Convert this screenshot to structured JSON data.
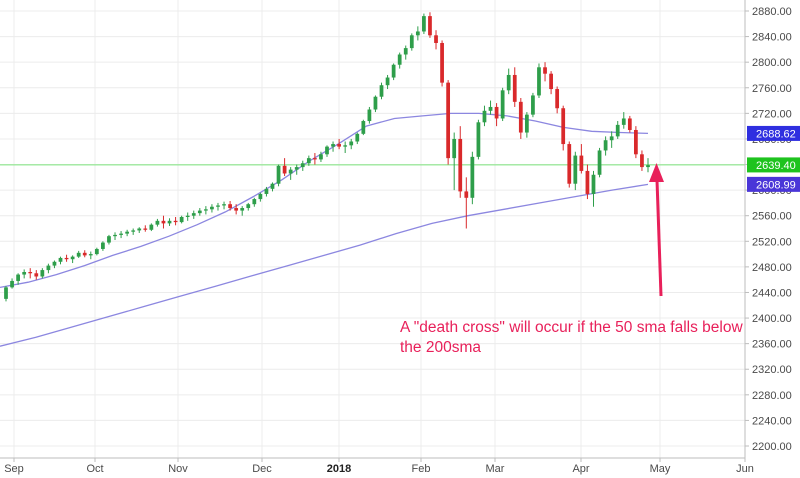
{
  "chart_data": {
    "type": "candlestick",
    "y_axis": {
      "position": "right",
      "ylim": [
        2170,
        2890
      ],
      "ticks": [
        2880,
        2840,
        2800,
        2760,
        2720,
        2680,
        2640,
        2600,
        2560,
        2520,
        2480,
        2440,
        2400,
        2360,
        2320,
        2280,
        2240,
        2200
      ],
      "tick_labels": [
        "2880.00",
        "2840.00",
        "2800.00",
        "2760.00",
        "2720.00",
        "2680.00",
        "2640.00",
        "2600.00",
        "2560.00",
        "2520.00",
        "2480.00",
        "2440.00",
        "2400.00",
        "2360.00",
        "2320.00",
        "2280.00",
        "2240.00",
        "2200.00"
      ]
    },
    "x_axis": {
      "labels": [
        {
          "text": "Sep",
          "bold": false
        },
        {
          "text": "Oct",
          "bold": false
        },
        {
          "text": "Nov",
          "bold": false
        },
        {
          "text": "Dec",
          "bold": false
        },
        {
          "text": "2018",
          "bold": true
        },
        {
          "text": "Feb",
          "bold": false
        },
        {
          "text": "Mar",
          "bold": false
        },
        {
          "text": "Apr",
          "bold": false
        },
        {
          "text": "May",
          "bold": false
        },
        {
          "text": "Jun",
          "bold": false
        }
      ]
    },
    "grid": true,
    "up_color": "#2e9e4a",
    "down_color": "#d9292b",
    "sma_color": "#8c87e0",
    "series": [
      {
        "kind": "candles",
        "values": [
          [
            2430,
            2450,
            2426,
            2448
          ],
          [
            2448,
            2462,
            2446,
            2458
          ],
          [
            2458,
            2470,
            2452,
            2468
          ],
          [
            2468,
            2476,
            2462,
            2472
          ],
          [
            2472,
            2478,
            2462,
            2470
          ],
          [
            2470,
            2475,
            2460,
            2465
          ],
          [
            2465,
            2478,
            2462,
            2475
          ],
          [
            2475,
            2485,
            2470,
            2482
          ],
          [
            2482,
            2490,
            2478,
            2488
          ],
          [
            2488,
            2496,
            2484,
            2494
          ],
          [
            2494,
            2499,
            2488,
            2492
          ],
          [
            2492,
            2498,
            2486,
            2496
          ],
          [
            2496,
            2505,
            2494,
            2502
          ],
          [
            2502,
            2506,
            2495,
            2498
          ],
          [
            2498,
            2504,
            2492,
            2500
          ],
          [
            2500,
            2510,
            2498,
            2508
          ],
          [
            2508,
            2520,
            2505,
            2518
          ],
          [
            2518,
            2530,
            2515,
            2528
          ],
          [
            2528,
            2534,
            2522,
            2530
          ],
          [
            2530,
            2536,
            2525,
            2532
          ],
          [
            2532,
            2538,
            2528,
            2535
          ],
          [
            2535,
            2540,
            2530,
            2537
          ],
          [
            2537,
            2542,
            2533,
            2540
          ],
          [
            2540,
            2545,
            2535,
            2538
          ],
          [
            2538,
            2548,
            2536,
            2546
          ],
          [
            2546,
            2555,
            2543,
            2552
          ],
          [
            2552,
            2560,
            2540,
            2548
          ],
          [
            2548,
            2556,
            2544,
            2552
          ],
          [
            2552,
            2558,
            2545,
            2550
          ],
          [
            2550,
            2560,
            2548,
            2558
          ],
          [
            2558,
            2565,
            2552,
            2560
          ],
          [
            2560,
            2568,
            2555,
            2564
          ],
          [
            2564,
            2572,
            2560,
            2568
          ],
          [
            2568,
            2575,
            2562,
            2570
          ],
          [
            2570,
            2578,
            2565,
            2574
          ],
          [
            2574,
            2580,
            2568,
            2576
          ],
          [
            2576,
            2582,
            2570,
            2578
          ],
          [
            2578,
            2583,
            2568,
            2572
          ],
          [
            2572,
            2578,
            2562,
            2568
          ],
          [
            2568,
            2575,
            2560,
            2572
          ],
          [
            2572,
            2580,
            2568,
            2578
          ],
          [
            2578,
            2588,
            2574,
            2586
          ],
          [
            2586,
            2596,
            2582,
            2594
          ],
          [
            2594,
            2605,
            2590,
            2602
          ],
          [
            2602,
            2612,
            2598,
            2610
          ],
          [
            2610,
            2640,
            2606,
            2638
          ],
          [
            2638,
            2650,
            2622,
            2626
          ],
          [
            2626,
            2636,
            2616,
            2632
          ],
          [
            2632,
            2640,
            2624,
            2636
          ],
          [
            2636,
            2646,
            2630,
            2642
          ],
          [
            2642,
            2654,
            2638,
            2650
          ],
          [
            2650,
            2658,
            2640,
            2648
          ],
          [
            2648,
            2660,
            2644,
            2656
          ],
          [
            2656,
            2670,
            2652,
            2668
          ],
          [
            2668,
            2676,
            2660,
            2672
          ],
          [
            2672,
            2680,
            2664,
            2668
          ],
          [
            2668,
            2676,
            2658,
            2670
          ],
          [
            2670,
            2680,
            2664,
            2676
          ],
          [
            2676,
            2690,
            2672,
            2688
          ],
          [
            2688,
            2710,
            2686,
            2708
          ],
          [
            2708,
            2730,
            2704,
            2726
          ],
          [
            2726,
            2748,
            2722,
            2746
          ],
          [
            2746,
            2768,
            2742,
            2764
          ],
          [
            2764,
            2780,
            2758,
            2776
          ],
          [
            2776,
            2798,
            2772,
            2796
          ],
          [
            2796,
            2815,
            2790,
            2812
          ],
          [
            2812,
            2826,
            2804,
            2822
          ],
          [
            2822,
            2845,
            2818,
            2842
          ],
          [
            2842,
            2856,
            2834,
            2848
          ],
          [
            2848,
            2876,
            2844,
            2872
          ],
          [
            2872,
            2878,
            2838,
            2842
          ],
          [
            2842,
            2850,
            2820,
            2830
          ],
          [
            2830,
            2834,
            2762,
            2768
          ],
          [
            2768,
            2772,
            2640,
            2650
          ],
          [
            2650,
            2690,
            2600,
            2680
          ],
          [
            2680,
            2700,
            2588,
            2598
          ],
          [
            2598,
            2620,
            2540,
            2588
          ],
          [
            2588,
            2660,
            2578,
            2652
          ],
          [
            2652,
            2710,
            2648,
            2706
          ],
          [
            2706,
            2732,
            2700,
            2724
          ],
          [
            2724,
            2740,
            2718,
            2730
          ],
          [
            2730,
            2736,
            2700,
            2712
          ],
          [
            2712,
            2760,
            2708,
            2756
          ],
          [
            2756,
            2790,
            2750,
            2780
          ],
          [
            2780,
            2792,
            2730,
            2738
          ],
          [
            2738,
            2744,
            2680,
            2690
          ],
          [
            2690,
            2722,
            2682,
            2718
          ],
          [
            2718,
            2752,
            2714,
            2748
          ],
          [
            2748,
            2798,
            2744,
            2792
          ],
          [
            2792,
            2800,
            2770,
            2782
          ],
          [
            2782,
            2786,
            2750,
            2758
          ],
          [
            2758,
            2762,
            2720,
            2728
          ],
          [
            2728,
            2732,
            2662,
            2672
          ],
          [
            2672,
            2676,
            2604,
            2610
          ],
          [
            2610,
            2660,
            2600,
            2654
          ],
          [
            2654,
            2672,
            2626,
            2630
          ],
          [
            2630,
            2640,
            2586,
            2594
          ],
          [
            2594,
            2630,
            2574,
            2624
          ],
          [
            2624,
            2666,
            2620,
            2662
          ],
          [
            2662,
            2684,
            2654,
            2678
          ],
          [
            2678,
            2692,
            2666,
            2684
          ],
          [
            2684,
            2708,
            2680,
            2702
          ],
          [
            2702,
            2722,
            2696,
            2712
          ],
          [
            2712,
            2716,
            2690,
            2694
          ],
          [
            2694,
            2700,
            2650,
            2656
          ],
          [
            2656,
            2662,
            2630,
            2636
          ],
          [
            2636,
            2650,
            2628,
            2639
          ]
        ]
      },
      {
        "kind": "sma50",
        "values": [
          2448,
          2456,
          2468,
          2482,
          2498,
          2512,
          2528,
          2546,
          2566,
          2590,
          2616,
          2646,
          2672,
          2700,
          2712,
          2716,
          2720,
          2720,
          2716,
          2708,
          2698,
          2692,
          2690,
          2688.62
        ]
      },
      {
        "kind": "sma200",
        "values": [
          2356,
          2370,
          2386,
          2402,
          2418,
          2434,
          2450,
          2466,
          2482,
          2498,
          2514,
          2532,
          2548,
          2560,
          2570,
          2580,
          2590,
          2600,
          2608.99
        ]
      }
    ],
    "price_labels": [
      {
        "text": "2688.62",
        "value": 2688.62,
        "color": "#2f2fe0"
      },
      {
        "text": "2639.40",
        "value": 2639.4,
        "color": "#1ec31e"
      },
      {
        "text": "2608.99",
        "value": 2608.99,
        "color": "#4a36d8"
      }
    ],
    "current_price_line": {
      "value": 2639.4,
      "color": "#7ee67e"
    },
    "annotation": {
      "line1": "A \"death cross\" will occur if the 50 sma falls below",
      "line2": "the 200sma",
      "color": "#e8205a"
    }
  }
}
